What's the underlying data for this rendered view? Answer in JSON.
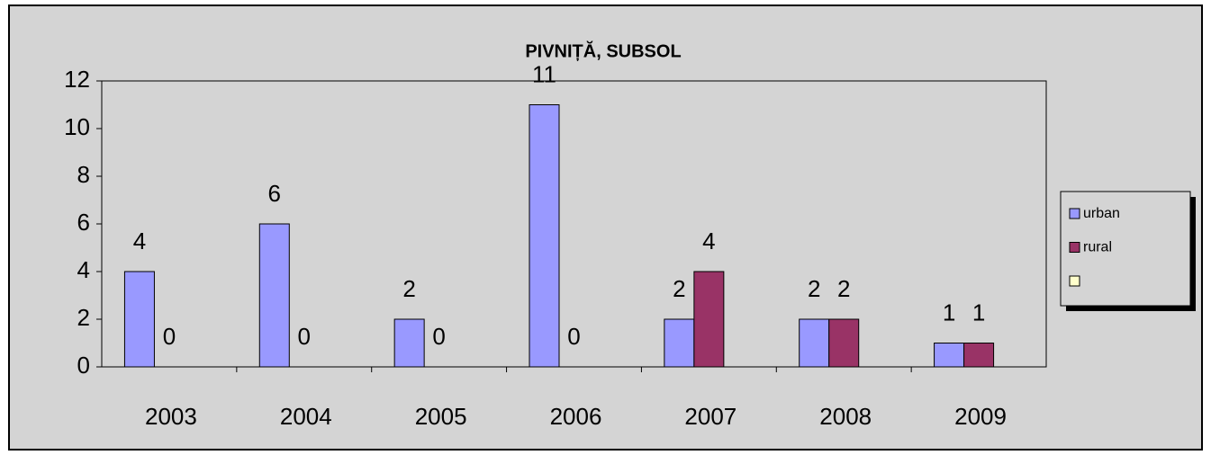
{
  "chart_data": {
    "type": "bar",
    "title": "PIVNIȚĂ, SUBSOL",
    "categories": [
      "2003",
      "2004",
      "2005",
      "2006",
      "2007",
      "2008",
      "2009"
    ],
    "series": [
      {
        "name": "urban",
        "color": "#9999ff",
        "values": [
          4,
          6,
          2,
          11,
          2,
          2,
          1
        ]
      },
      {
        "name": "rural",
        "color": "#993366",
        "values": [
          0,
          0,
          0,
          0,
          4,
          2,
          1
        ]
      },
      {
        "color": "#ffffcc",
        "values": [
          null,
          null,
          null,
          null,
          null,
          null,
          null
        ]
      }
    ],
    "ylim": [
      0,
      12
    ],
    "yticks": [
      0,
      2,
      4,
      6,
      8,
      10,
      12
    ],
    "grid": false,
    "legend": "right"
  }
}
